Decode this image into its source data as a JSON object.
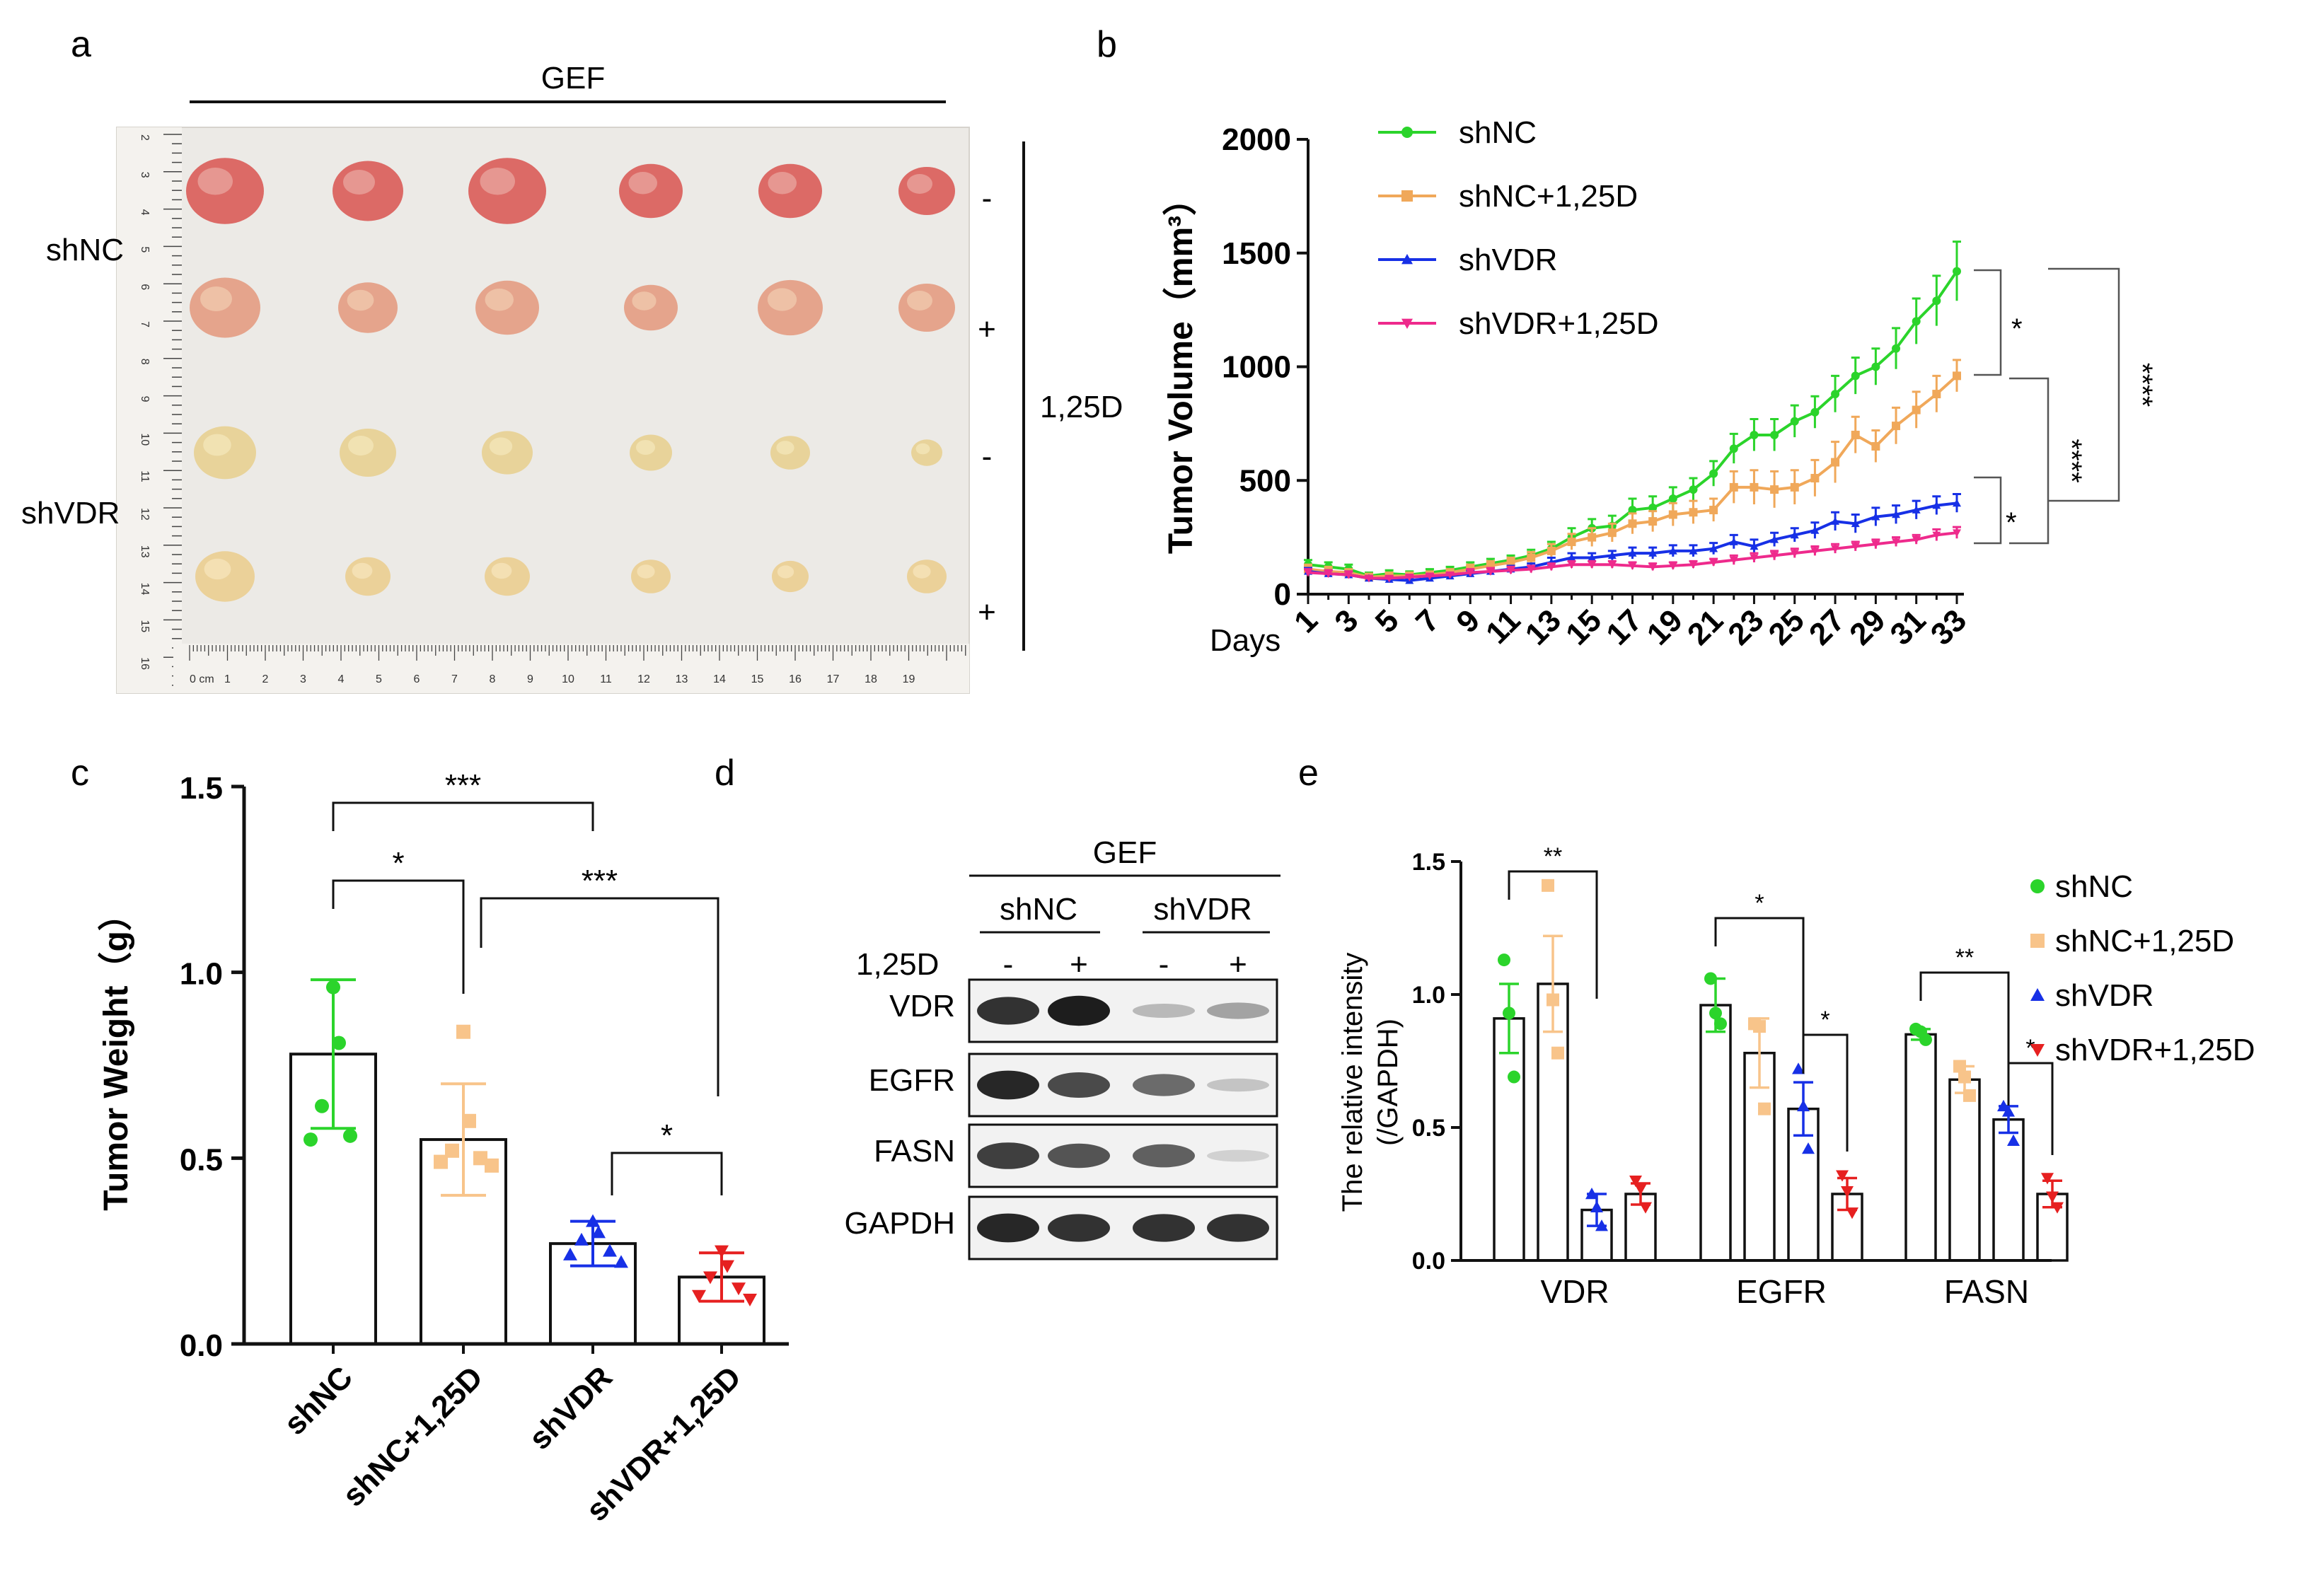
{
  "panel_labels": {
    "a": "a",
    "b": "b",
    "c": "c",
    "d": "d",
    "e": "e"
  },
  "panel_a": {
    "title": "GEF",
    "row_labels": [
      "shNC",
      "shVDR"
    ],
    "treatment_label": "1,25D",
    "treatment_marks": [
      "-",
      "+",
      "-",
      "+"
    ],
    "ruler_unit": "0 cm",
    "ruler_bottom_ticks": [
      "1",
      "2",
      "3",
      "4",
      "5",
      "6",
      "7",
      "8",
      "9",
      "10",
      "11",
      "12",
      "13",
      "14",
      "15",
      "16",
      "17",
      "18",
      "19"
    ],
    "ruler_left_ticks": [
      "2",
      "3",
      "4",
      "5",
      "6",
      "7",
      "8",
      "9",
      "10",
      "11",
      "12",
      "13",
      "14",
      "15",
      "16"
    ]
  },
  "chart_data": [
    {
      "panel": "b",
      "type": "line",
      "title": "",
      "ylabel": "Tumor Volume（mm³）",
      "xlabel": "Days",
      "ylim": [
        0,
        2000
      ],
      "yticks": [
        "0",
        "500",
        "1000",
        "1500",
        "2000"
      ],
      "x_tick_labels": [
        "1",
        "3",
        "5",
        "7",
        "9",
        "11",
        "13",
        "15",
        "17",
        "19",
        "21",
        "23",
        "25",
        "27",
        "29",
        "31",
        "33"
      ],
      "x": [
        1,
        2,
        3,
        4,
        5,
        6,
        7,
        8,
        9,
        10,
        11,
        12,
        13,
        14,
        15,
        16,
        17,
        18,
        19,
        20,
        21,
        22,
        23,
        24,
        25,
        26,
        27,
        28,
        29,
        30,
        31,
        32,
        33
      ],
      "series": [
        {
          "name": "shNC",
          "color": "#2bd42b",
          "marker": "circle",
          "values": [
            130,
            120,
            110,
            80,
            90,
            85,
            95,
            105,
            120,
            135,
            150,
            170,
            200,
            250,
            290,
            300,
            370,
            380,
            420,
            460,
            530,
            640,
            700,
            700,
            760,
            800,
            880,
            960,
            1000,
            1080,
            1200,
            1290,
            1420
          ],
          "err": [
            20,
            20,
            20,
            15,
            15,
            15,
            15,
            15,
            20,
            20,
            20,
            25,
            30,
            40,
            40,
            45,
            50,
            50,
            50,
            50,
            55,
            65,
            70,
            70,
            70,
            70,
            80,
            80,
            80,
            90,
            100,
            110,
            130
          ]
        },
        {
          "name": "shNC+1,25D",
          "color": "#f0a85a",
          "marker": "square",
          "values": [
            110,
            100,
            95,
            75,
            80,
            80,
            85,
            95,
            110,
            125,
            140,
            160,
            190,
            230,
            250,
            270,
            310,
            320,
            350,
            360,
            370,
            470,
            470,
            460,
            470,
            510,
            580,
            700,
            650,
            740,
            810,
            880,
            960
          ],
          "err": [
            20,
            20,
            15,
            15,
            15,
            15,
            15,
            15,
            20,
            20,
            20,
            25,
            30,
            35,
            40,
            40,
            45,
            45,
            50,
            50,
            50,
            70,
            75,
            80,
            75,
            80,
            90,
            80,
            70,
            80,
            80,
            80,
            70
          ]
        },
        {
          "name": "shVDR",
          "color": "#1730e6",
          "marker": "triangle",
          "values": [
            100,
            90,
            85,
            70,
            65,
            60,
            70,
            80,
            90,
            100,
            110,
            120,
            140,
            160,
            160,
            170,
            180,
            180,
            190,
            190,
            200,
            230,
            210,
            240,
            260,
            280,
            320,
            310,
            340,
            350,
            370,
            390,
            400
          ],
          "err": [
            15,
            15,
            15,
            10,
            10,
            10,
            10,
            10,
            15,
            15,
            15,
            15,
            20,
            20,
            20,
            20,
            25,
            25,
            25,
            25,
            25,
            30,
            30,
            30,
            30,
            35,
            40,
            40,
            40,
            40,
            40,
            40,
            40
          ]
        },
        {
          "name": "shVDR+1,25D",
          "color": "#ee2a8c",
          "marker": "triangle-down",
          "values": [
            95,
            90,
            85,
            70,
            70,
            75,
            80,
            85,
            95,
            100,
            105,
            110,
            120,
            130,
            130,
            130,
            125,
            120,
            125,
            130,
            140,
            150,
            160,
            170,
            180,
            190,
            200,
            210,
            220,
            230,
            240,
            260,
            270
          ],
          "err": [
            15,
            15,
            15,
            10,
            10,
            10,
            10,
            10,
            15,
            15,
            15,
            15,
            15,
            15,
            15,
            15,
            15,
            15,
            15,
            15,
            15,
            20,
            20,
            20,
            20,
            20,
            20,
            20,
            20,
            20,
            20,
            25,
            25
          ]
        }
      ],
      "significance": [
        "*",
        "****",
        "****",
        "*"
      ],
      "legend": "top-center"
    },
    {
      "panel": "c",
      "type": "bar",
      "ylabel": "Tumor Weight（g）",
      "ylim": [
        0,
        1.5
      ],
      "yticks": [
        "0.0",
        "0.5",
        "1.0",
        "1.5"
      ],
      "categories": [
        "shNC",
        "shNC+1,25D",
        "shVDR",
        "shVDR+1,25D"
      ],
      "values": [
        0.78,
        0.55,
        0.27,
        0.18
      ],
      "err": [
        0.2,
        0.15,
        0.06,
        0.065
      ],
      "colors": [
        "#2bd42b",
        "#f8c48a",
        "#1730e6",
        "#e62020"
      ],
      "points": [
        [
          0.96,
          0.81,
          0.64,
          0.56,
          0.55
        ],
        [
          0.84,
          0.6,
          0.52,
          0.5,
          0.49,
          0.48
        ],
        [
          0.33,
          0.3,
          0.28,
          0.25,
          0.24,
          0.22
        ],
        [
          0.25,
          0.21,
          0.18,
          0.15,
          0.13,
          0.12
        ]
      ],
      "significance": [
        "***",
        "*",
        "***",
        "*"
      ]
    },
    {
      "panel": "e",
      "type": "bar",
      "ylabel": "The relative intensity",
      "ylabel2": "(/GAPDH)",
      "ylim": [
        0,
        1.5
      ],
      "yticks": [
        "0.0",
        "0.5",
        "1.0",
        "1.5"
      ],
      "categories": [
        "VDR",
        "EGFR",
        "FASN"
      ],
      "series": [
        {
          "name": "shNC",
          "color": "#2bd42b",
          "values": [
            0.91,
            0.96,
            0.85
          ],
          "err": [
            0.13,
            0.1,
            0.02
          ],
          "points": [
            [
              1.13,
              0.93,
              0.69
            ],
            [
              1.06,
              0.93,
              0.89
            ],
            [
              0.87,
              0.86,
              0.83
            ]
          ]
        },
        {
          "name": "shNC+1,25D",
          "color": "#f8c48a",
          "values": [
            1.04,
            0.78,
            0.68
          ],
          "err": [
            0.18,
            0.13,
            0.05
          ],
          "points": [
            [
              1.41,
              0.98,
              0.78
            ],
            [
              0.89,
              0.88,
              0.57
            ],
            [
              0.73,
              0.69,
              0.62
            ]
          ]
        },
        {
          "name": "shVDR",
          "color": "#1730e6",
          "values": [
            0.19,
            0.57,
            0.53
          ],
          "err": [
            0.06,
            0.1,
            0.05
          ],
          "points": [
            [
              0.25,
              0.2,
              0.13
            ],
            [
              0.72,
              0.58,
              0.42
            ],
            [
              0.58,
              0.56,
              0.45
            ]
          ]
        },
        {
          "name": "shVDR+1,25D",
          "color": "#e62020",
          "values": [
            0.25,
            0.25,
            0.25
          ],
          "err": [
            0.04,
            0.06,
            0.05
          ],
          "points": [
            [
              0.3,
              0.27,
              0.2
            ],
            [
              0.32,
              0.26,
              0.18
            ],
            [
              0.31,
              0.24,
              0.2
            ]
          ]
        }
      ],
      "significance": [
        "**",
        "*",
        "*",
        "**",
        "*"
      ],
      "legend": "right"
    }
  ],
  "panel_d": {
    "title": "GEF",
    "groups": [
      "shNC",
      "shVDR"
    ],
    "treatment_label": "1,25D",
    "lane_marks": [
      "-",
      "+",
      "-",
      "+"
    ],
    "blots": [
      {
        "label": "VDR",
        "bands": [
          0.85,
          0.95,
          0.25,
          0.35
        ]
      },
      {
        "label": "EGFR",
        "bands": [
          0.9,
          0.75,
          0.6,
          0.2
        ]
      },
      {
        "label": "FASN",
        "bands": [
          0.8,
          0.7,
          0.65,
          0.15
        ]
      },
      {
        "label": "GAPDH",
        "bands": [
          0.9,
          0.85,
          0.85,
          0.85
        ]
      }
    ]
  }
}
